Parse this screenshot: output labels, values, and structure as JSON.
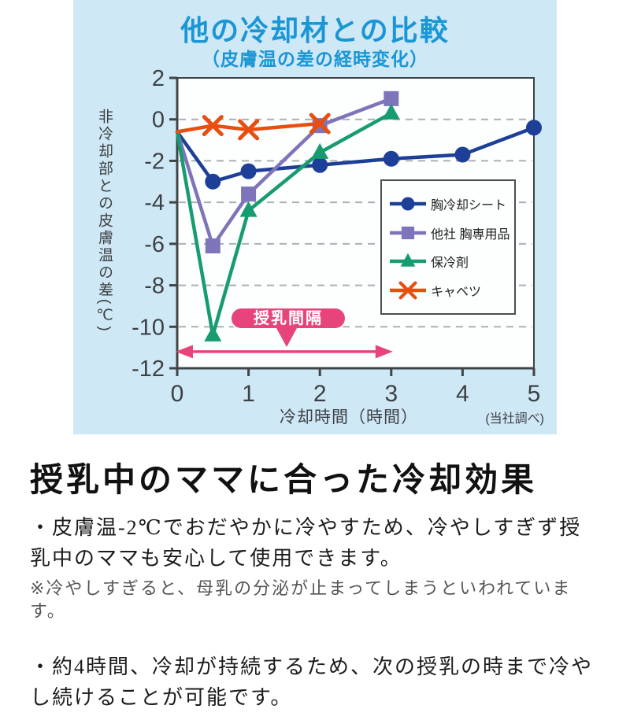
{
  "chart_data": {
    "type": "line",
    "title": "他の冷却材との比較",
    "subtitle": "（皮膚温の差の経時変化）",
    "xlabel": "冷却時間（時間）",
    "ylabel": "非冷却部との皮膚温の差(℃)",
    "source_note": "(当社調べ)",
    "xlim": [
      0,
      5
    ],
    "ylim": [
      -12,
      2
    ],
    "xticks": [
      0,
      1,
      2,
      3,
      4,
      5
    ],
    "yticks": [
      2,
      0,
      -2,
      -4,
      -6,
      -8,
      -10,
      -12
    ],
    "gridlines_at": [
      0,
      -2,
      -4,
      -6,
      -8,
      -10
    ],
    "grid": true,
    "legend_position": "lower right",
    "series": [
      {
        "name": "胸冷却シート",
        "marker": "circle",
        "color": "#1d3f97",
        "x": [
          0,
          0.5,
          1,
          2,
          3,
          4,
          5
        ],
        "y": [
          -0.6,
          -3.0,
          -2.5,
          -2.2,
          -1.9,
          -1.7,
          -0.4
        ]
      },
      {
        "name": "他社 胸専用品",
        "marker": "square",
        "color": "#7e74ba",
        "x": [
          0,
          0.5,
          1,
          2,
          3
        ],
        "y": [
          -0.6,
          -6.1,
          -3.6,
          -0.3,
          1.0
        ]
      },
      {
        "name": "保冷剤",
        "marker": "triangle",
        "color": "#179b70",
        "x": [
          0,
          0.5,
          1,
          2,
          3
        ],
        "y": [
          -0.6,
          -10.4,
          -4.4,
          -1.6,
          0.3
        ]
      },
      {
        "name": "キャベツ",
        "marker": "x",
        "color": "#e84e10",
        "x": [
          0,
          0.5,
          1,
          2
        ],
        "y": [
          -0.6,
          -0.3,
          -0.5,
          -0.2
        ]
      }
    ],
    "annotation": {
      "label": "授乳間隔",
      "arrow_y": -11.2,
      "arrow_x_range": [
        0,
        3
      ],
      "color": "#e8447c"
    }
  },
  "colors": {
    "panel_bg": "#cfe8f6",
    "plot_bg": "#fdfefe",
    "title": "#1b96d5",
    "axis": "#3f4447",
    "grid": "#a9b1b6",
    "tick_text": "#3c4043",
    "accent_pink": "#e8447c"
  },
  "body": {
    "heading": "授乳中のママに合った冷却効果",
    "p1": "・皮膚温-2℃でおだやかに冷やすため、冷やしすぎず授乳中のママも安心して使用できます。",
    "note": "※冷やしすぎると、母乳の分泌が止まってしまうといわれています。",
    "p2": "・約4時間、冷却が持続するため、次の授乳の時まで冷やし続けることが可能です。"
  }
}
